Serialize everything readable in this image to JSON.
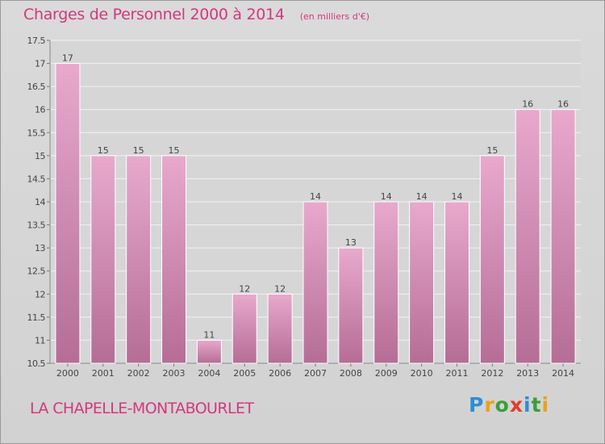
{
  "header": {
    "title": "Charges de Personnel 2000 à 2014",
    "subtitle": "(en milliers d'€)"
  },
  "footer": {
    "location": "LA CHAPELLE-MONTABOURLET",
    "logo": "Proxiti",
    "logo_letters": [
      {
        "char": "P",
        "color": "#2b8fd6"
      },
      {
        "char": "r",
        "color": "#e8a21b"
      },
      {
        "char": "o",
        "color": "#3a9e3a"
      },
      {
        "char": "x",
        "color": "#e23c2e"
      },
      {
        "char": "i",
        "color": "#2b8fd6"
      },
      {
        "char": "t",
        "color": "#3a9e3a"
      },
      {
        "char": "i",
        "color": "#e8a21b"
      }
    ]
  },
  "chart_data": {
    "type": "bar",
    "categories": [
      "2000",
      "2001",
      "2002",
      "2003",
      "2004",
      "2005",
      "2006",
      "2007",
      "2008",
      "2009",
      "2010",
      "2011",
      "2012",
      "2013",
      "2014"
    ],
    "values": [
      17,
      15,
      15,
      15,
      11,
      12,
      12,
      14,
      13,
      14,
      14,
      14,
      15,
      16,
      16
    ],
    "data_labels": [
      "17",
      "15",
      "15",
      "15",
      "11",
      "12",
      "12",
      "14",
      "13",
      "14",
      "14",
      "14",
      "15",
      "16",
      "16"
    ],
    "ylim": [
      10.5,
      17.5
    ],
    "yticks": [
      10.5,
      11,
      11.5,
      12,
      12.5,
      13,
      13.5,
      14,
      14.5,
      15,
      15.5,
      16,
      16.5,
      17,
      17.5
    ],
    "ytick_labels": [
      "10.5",
      "11",
      "11.5",
      "12",
      "12.5",
      "13",
      "13.5",
      "14",
      "14.5",
      "15",
      "15.5",
      "16",
      "16.5",
      "17",
      "17.5"
    ],
    "grid": true,
    "colors": {
      "bar_top": "#e8a9cd",
      "bar_bottom": "#b56d96",
      "title": "#d4377f"
    }
  }
}
